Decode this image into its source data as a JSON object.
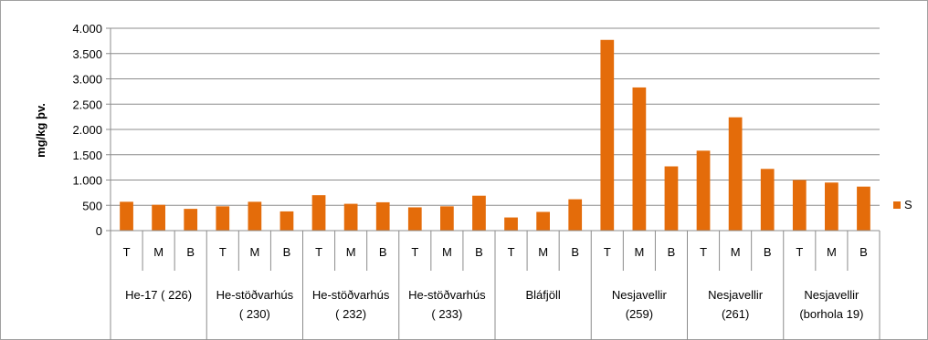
{
  "chart_data": {
    "type": "bar",
    "ylabel": "mg/kg þv.",
    "ylim": [
      0,
      4000
    ],
    "y_ticks": [
      0,
      500,
      1000,
      1500,
      2000,
      2500,
      3000,
      3500,
      4000
    ],
    "y_tick_labels": [
      "0",
      "500",
      "1.000",
      "1.500",
      "2.000",
      "2.500",
      "3.000",
      "3.500",
      "4.000"
    ],
    "grid": true,
    "legend_position": "right",
    "groups": [
      {
        "label_lines": [
          "He-17 ( 226)"
        ],
        "subcategories": [
          "T",
          "M",
          "B"
        ],
        "values": [
          570,
          510,
          430
        ]
      },
      {
        "label_lines": [
          "He-stöðvarhús",
          "( 230)"
        ],
        "subcategories": [
          "T",
          "M",
          "B"
        ],
        "values": [
          480,
          570,
          380
        ]
      },
      {
        "label_lines": [
          "He-stöðvarhús",
          "( 232)"
        ],
        "subcategories": [
          "T",
          "M",
          "B"
        ],
        "values": [
          700,
          530,
          560
        ]
      },
      {
        "label_lines": [
          "He-stöðvarhús",
          "( 233)"
        ],
        "subcategories": [
          "T",
          "M",
          "B"
        ],
        "values": [
          460,
          480,
          690
        ]
      },
      {
        "label_lines": [
          "Bláfjöll"
        ],
        "subcategories": [
          "T",
          "M",
          "B"
        ],
        "values": [
          260,
          370,
          620
        ]
      },
      {
        "label_lines": [
          "Nesjavellir",
          "(259)"
        ],
        "subcategories": [
          "T",
          "M",
          "B"
        ],
        "values": [
          3770,
          2830,
          1270
        ]
      },
      {
        "label_lines": [
          "Nesjavellir",
          "(261)"
        ],
        "subcategories": [
          "T",
          "M",
          "B"
        ],
        "values": [
          1580,
          2240,
          1220
        ]
      },
      {
        "label_lines": [
          "Nesjavellir",
          "(borhola 19)"
        ],
        "subcategories": [
          "T",
          "M",
          "B"
        ],
        "values": [
          1000,
          950,
          870
        ]
      }
    ],
    "series": [
      {
        "name": "S",
        "color": "#E46C0A"
      }
    ]
  }
}
